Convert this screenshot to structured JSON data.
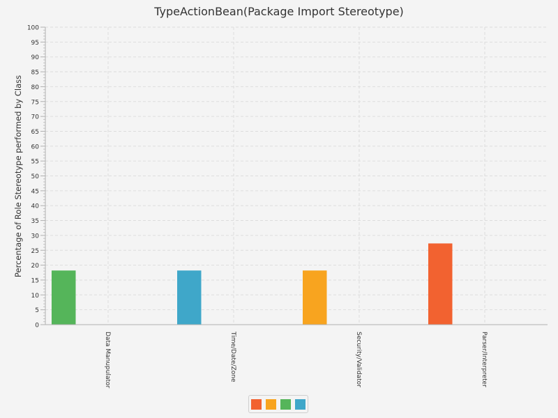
{
  "chart_data": {
    "type": "bar",
    "title": "TypeActionBean(Package Import Stereotype)",
    "xlabel": "",
    "ylabel": "Percentage of Role Stereotype performed by Class",
    "ylim": [
      0,
      100
    ],
    "y_tick_step": 5,
    "grid": true,
    "categories": [
      "Data Manupulator",
      "Time/Date/Zone",
      "Security/Validator",
      "Parser/Interpreter"
    ],
    "series": [
      {
        "color": "#f26230",
        "values": [
          0,
          0,
          0,
          27.3
        ]
      },
      {
        "color": "#f8a41f",
        "values": [
          0,
          0,
          18.2,
          0
        ]
      },
      {
        "color": "#55b55a",
        "values": [
          18.2,
          0,
          0,
          0
        ]
      },
      {
        "color": "#3fa7c9",
        "values": [
          0,
          18.2,
          0,
          0
        ]
      }
    ],
    "legend": {
      "placement": "bottom-center"
    }
  }
}
